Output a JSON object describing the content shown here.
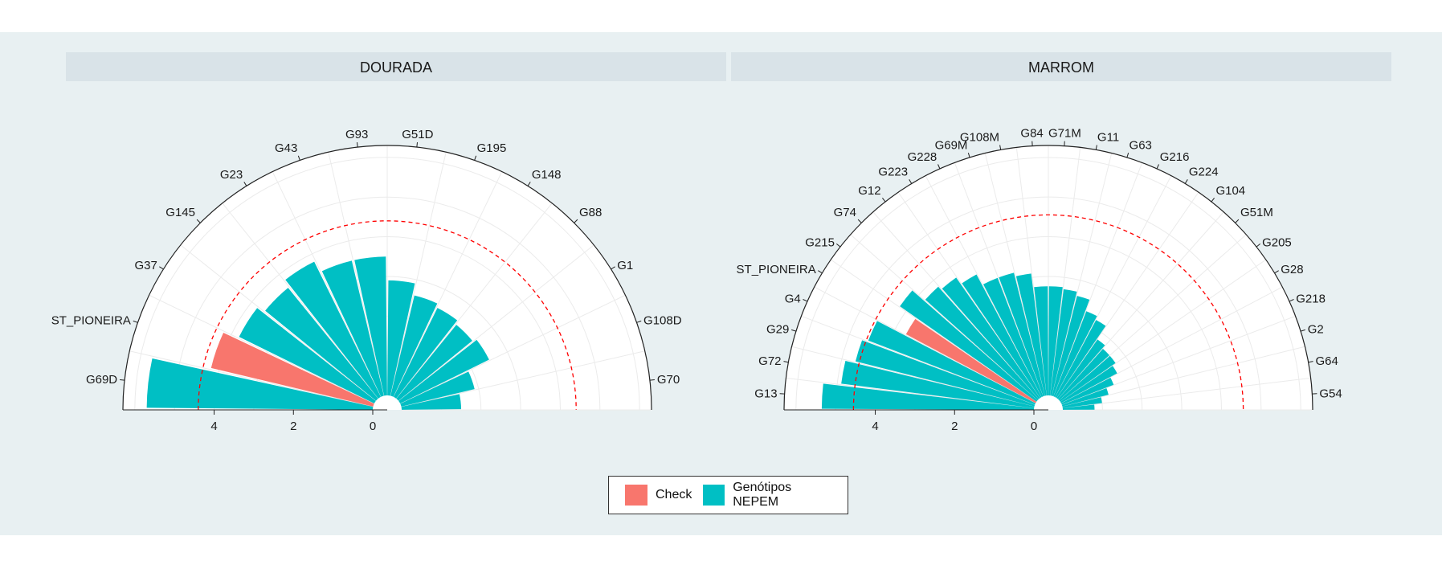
{
  "chart_data": {
    "type": "bar",
    "subtype": "polar-half-radial",
    "legend": {
      "placement": "bottom",
      "entries": [
        {
          "key": "Check",
          "label": "Check",
          "color": "#F8766D"
        },
        {
          "key": "NEPEM",
          "label": "Genótipos NEPEM",
          "color": "#00BFC4"
        }
      ]
    },
    "colors": {
      "panel_bg": "#E8F0F2",
      "strip_bg": "#D9E3E8",
      "reference_line": "#FF0000"
    },
    "radial_axis": {
      "ticks": [
        4,
        2,
        0
      ],
      "lim": [
        0,
        6.3
      ]
    },
    "panels": [
      {
        "title": "DOURADA",
        "reference": 4.4,
        "categories": [
          "G69D",
          "ST_PIONEIRA",
          "G37",
          "G145",
          "G23",
          "G43",
          "G93",
          "G51D",
          "G195",
          "G148",
          "G88",
          "G1",
          "G108D",
          "G70"
        ],
        "groups": [
          "NEPEM",
          "Check",
          "NEPEM",
          "NEPEM",
          "NEPEM",
          "NEPEM",
          "NEPEM",
          "NEPEM",
          "NEPEM",
          "NEPEM",
          "NEPEM",
          "NEPEM",
          "NEPEM",
          "NEPEM"
        ],
        "values": [
          5.7,
          4.2,
          3.8,
          3.6,
          3.8,
          3.5,
          3.5,
          2.9,
          2.6,
          2.5,
          2.4,
          2.5,
          1.9,
          1.5
        ]
      },
      {
        "title": "MARROM",
        "reference": 4.55,
        "categories": [
          "G13",
          "G72",
          "G29",
          "G4",
          "ST_PIONEIRA",
          "G215",
          "G74",
          "G12",
          "G223",
          "G228",
          "G69M",
          "G108M",
          "G84",
          "G71M",
          "G11",
          "G63",
          "G216",
          "G224",
          "G104",
          "G51M",
          "G205",
          "G28",
          "G218",
          "G2",
          "G64",
          "G54"
        ],
        "groups": [
          "NEPEM",
          "NEPEM",
          "NEPEM",
          "NEPEM",
          "Check",
          "NEPEM",
          "NEPEM",
          "NEPEM",
          "NEPEM",
          "NEPEM",
          "NEPEM",
          "NEPEM",
          "NEPEM",
          "NEPEM",
          "NEPEM",
          "NEPEM",
          "NEPEM",
          "NEPEM",
          "NEPEM",
          "NEPEM",
          "NEPEM",
          "NEPEM",
          "NEPEM",
          "NEPEM",
          "NEPEM",
          "NEPEM"
        ],
        "values": [
          5.35,
          4.9,
          4.65,
          4.5,
          3.7,
          4.2,
          3.8,
          3.7,
          3.5,
          3.2,
          3.2,
          3.1,
          2.75,
          2.75,
          2.7,
          2.6,
          2.3,
          2.2,
          1.8,
          1.7,
          1.7,
          1.6,
          1.4,
          1.2,
          1.0,
          0.8
        ]
      }
    ]
  }
}
